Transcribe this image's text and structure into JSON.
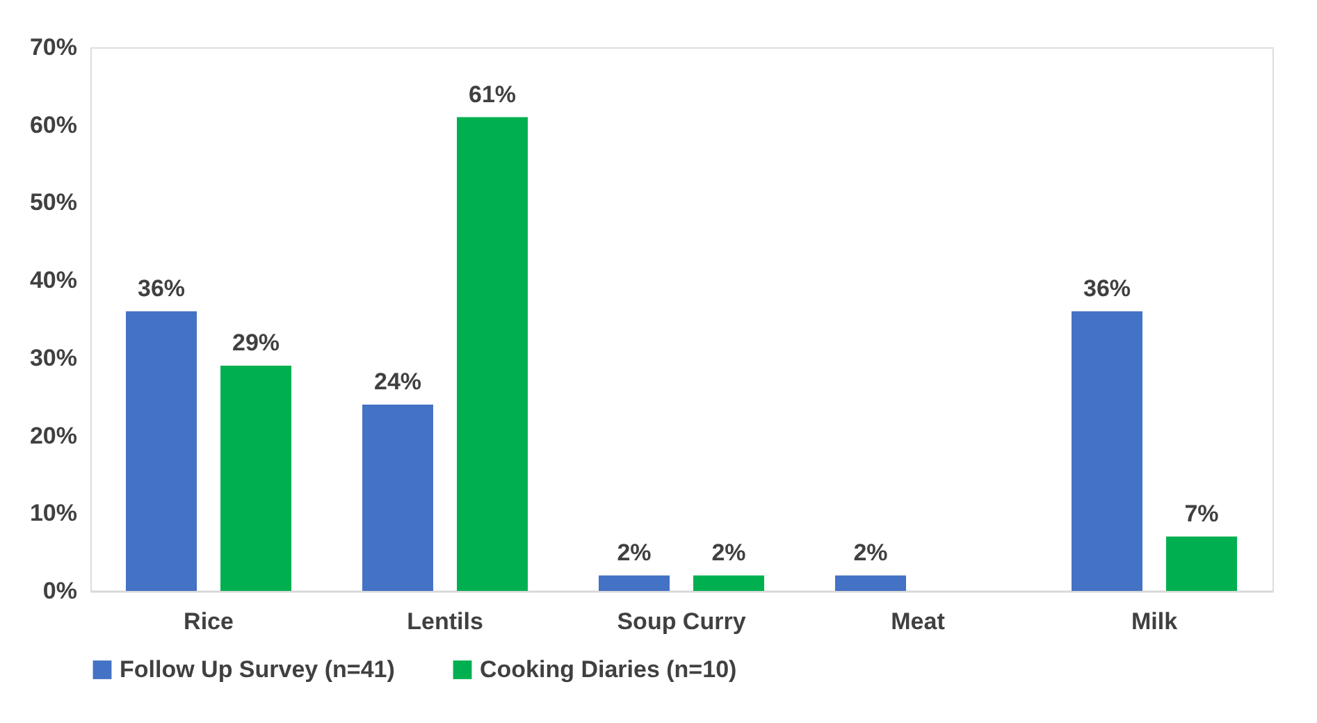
{
  "chart_data": {
    "type": "bar",
    "categories": [
      "Rice",
      "Lentils",
      "Soup Curry",
      "Meat",
      "Milk"
    ],
    "series": [
      {
        "name": "Follow Up Survey (n=41)",
        "color": "#4472c4",
        "values": [
          36,
          24,
          2,
          2,
          36
        ],
        "value_labels": [
          "36%",
          "24%",
          "2%",
          "2%",
          "36%"
        ]
      },
      {
        "name": "Cooking Diaries (n=10)",
        "color": "#00b050",
        "values": [
          29,
          61,
          2,
          null,
          7
        ],
        "value_labels": [
          "29%",
          "61%",
          "2%",
          null,
          "7%"
        ]
      }
    ],
    "ylim": [
      0,
      70
    ],
    "yticks": [
      {
        "value": 0,
        "label": "0%"
      },
      {
        "value": 10,
        "label": "10%"
      },
      {
        "value": 20,
        "label": "20%"
      },
      {
        "value": 30,
        "label": "30%"
      },
      {
        "value": 40,
        "label": "40%"
      },
      {
        "value": 50,
        "label": "50%"
      },
      {
        "value": 60,
        "label": "60%"
      },
      {
        "value": 70,
        "label": "70%"
      }
    ],
    "grid": false,
    "legend": "bottom"
  }
}
